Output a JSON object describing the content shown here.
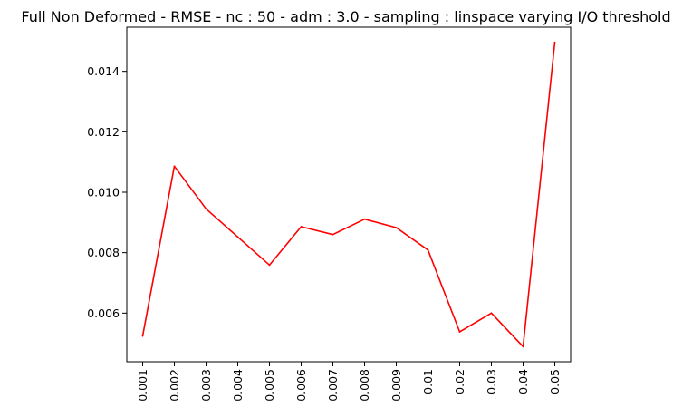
{
  "chart_data": {
    "type": "line",
    "title": "Full Non Deformed - RMSE - nc : 50 - adm : 3.0 - sampling : linspace varying I/O threshold",
    "xlabel": "",
    "ylabel": "",
    "categories": [
      "0.001",
      "0.002",
      "0.003",
      "0.004",
      "0.005",
      "0.006",
      "0.007",
      "0.008",
      "0.009",
      "0.01",
      "0.02",
      "0.03",
      "0.04",
      "0.05"
    ],
    "series": [
      {
        "color": "#ff0000",
        "values": [
          0.00524,
          0.01086,
          0.00945,
          0.00852,
          0.00759,
          0.00886,
          0.0086,
          0.00911,
          0.00883,
          0.00809,
          0.00538,
          0.006,
          0.00489,
          0.01496
        ]
      }
    ],
    "yticks": [
      0.006,
      0.008,
      0.01,
      0.012,
      0.014
    ],
    "ytick_labels": [
      "0.006",
      "0.008",
      "0.010",
      "0.012",
      "0.014"
    ],
    "ylim": [
      0.00439,
      0.01546
    ],
    "grid": false,
    "legend": "none"
  }
}
